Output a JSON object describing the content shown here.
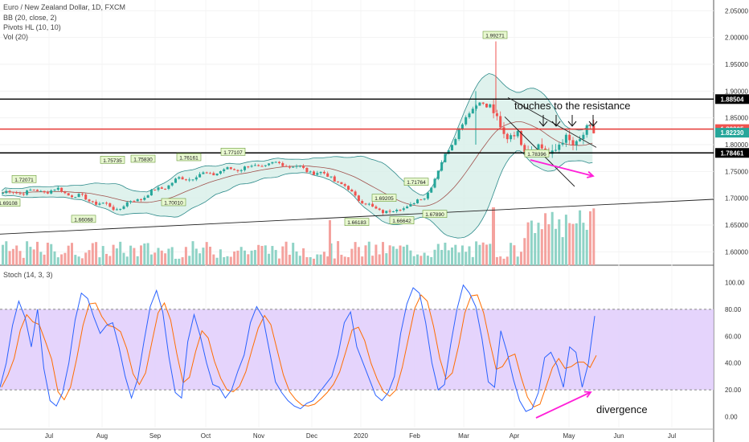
{
  "header": {
    "symbol_title": "Euro / New Zealand Dollar, 1D, FXCM",
    "indicators": [
      "BB (20, close, 2)",
      "Pivots HL (10, 10)",
      "Vol (20)"
    ],
    "stoch_title": "Stoch (14, 3, 3)"
  },
  "colors": {
    "up": "#26a69a",
    "down": "#ef5350",
    "bb_fill": "#d7efe9",
    "bb_line": "#2e8b8b",
    "bb_mid": "#a0524d",
    "stoch_k": "#2962ff",
    "stoch_d": "#ff6d00",
    "stoch_band": "#e1cdfc",
    "annotation": "#ff1fd8"
  },
  "annotations": {
    "resistance_text": "touches to the resistance",
    "divergence_text": "divergence"
  },
  "chart_data": [
    {
      "type": "candlestick",
      "title": "Euro / New Zealand Dollar, 1D, FXCM",
      "ylim": [
        1.575,
        2.07
      ],
      "y_ticks": [
        2.05,
        2.0,
        1.95,
        1.9,
        1.85,
        1.8,
        1.75,
        1.7,
        1.65,
        1.6
      ],
      "y_tick_labels": [
        "2.05000",
        "2.00000",
        "1.95000",
        "1.90000",
        "1.85000",
        "1.80000",
        "1.75000",
        "1.70000",
        "1.65000",
        "1.60000"
      ],
      "x_month_labels": [
        "Jul",
        "Aug",
        "Sep",
        "Oct",
        "Nov",
        "Dec",
        "2020",
        "Feb",
        "Mar",
        "Apr",
        "May",
        "Jun",
        "Jul"
      ],
      "price_badges": [
        {
          "label": "1.88504",
          "value": 1.88504,
          "color": "#000000"
        },
        {
          "label": "1.82905",
          "value": 1.82905,
          "color": "#ef5350"
        },
        {
          "label": "1.82230",
          "value": 1.8223,
          "color": "#26a69a"
        },
        {
          "label": "1.78461",
          "value": 1.78461,
          "color": "#000000"
        }
      ],
      "horizontal_lines": [
        {
          "value": 1.88504,
          "color": "#000000"
        },
        {
          "value": 1.82905,
          "color": "#e53935"
        },
        {
          "value": 1.78461,
          "color": "#000000"
        }
      ],
      "pivot_labels": [
        "1.72071",
        "1.69108",
        "1.66068",
        "1.75735",
        "1.75830",
        "1.76161",
        "1.77107",
        "1.70010",
        "1.69205",
        "1.71764",
        "1.66183",
        "1.66642",
        "1.67890",
        "1.99271",
        "1.78396"
      ],
      "key_points": [
        {
          "x": "Jun",
          "close": 1.71
        },
        {
          "x": "Jul",
          "close": 1.715
        },
        {
          "x": "Aug",
          "close": 1.68
        },
        {
          "x": "Aug",
          "close": 1.735
        },
        {
          "x": "Sep",
          "close": 1.755
        },
        {
          "x": "Oct",
          "close": 1.765
        },
        {
          "x": "Nov",
          "close": 1.74
        },
        {
          "x": "Dec",
          "close": 1.68
        },
        {
          "x": "2020",
          "close": 1.675
        },
        {
          "x": "Feb",
          "close": 1.7
        },
        {
          "x": "Mar",
          "close": 1.83
        },
        {
          "x": "Mar",
          "close": 1.885
        },
        {
          "x": "Apr",
          "close": 1.82
        },
        {
          "x": "May",
          "close": 1.785
        },
        {
          "x": "May",
          "close": 1.8223
        }
      ]
    },
    {
      "type": "line",
      "title": "Stoch (14, 3, 3)",
      "ylim": [
        -8,
        108
      ],
      "y_ticks": [
        100,
        80,
        60,
        40,
        20,
        0
      ],
      "y_tick_labels": [
        "100.00",
        "80.00",
        "60.00",
        "40.00",
        "20.00",
        "0.00"
      ],
      "band": [
        20,
        80
      ],
      "series": [
        {
          "values": [
            22,
            40,
            68,
            86,
            74,
            52,
            80,
            36,
            12,
            8,
            18,
            40,
            72,
            92,
            88,
            74,
            62,
            68,
            70,
            52,
            30,
            14,
            28,
            56,
            82,
            94,
            78,
            44,
            18,
            14,
            56,
            76,
            60,
            40,
            24,
            22,
            14,
            20,
            34,
            46,
            70,
            82,
            74,
            50,
            26,
            18,
            12,
            8,
            6,
            10,
            12,
            18,
            24,
            30,
            46,
            70,
            78,
            52,
            40,
            28,
            16,
            12,
            18,
            30,
            62,
            84,
            96,
            92,
            70,
            40,
            20,
            24,
            54,
            80,
            98,
            92,
            82,
            58,
            26,
            22,
            64,
            48,
            28,
            12,
            4,
            6,
            18,
            44,
            48,
            38,
            22,
            52,
            48,
            22,
            40,
            75
          ]
        }
      ]
    }
  ]
}
